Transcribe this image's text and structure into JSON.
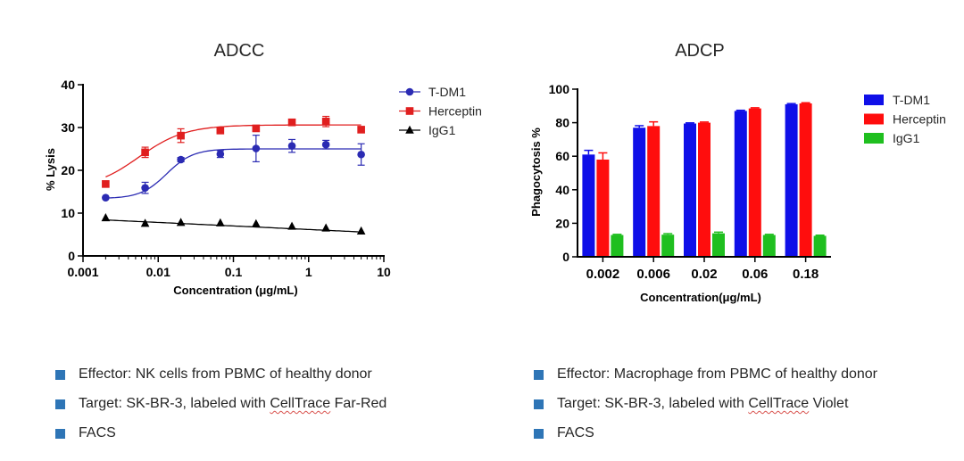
{
  "colors": {
    "bullet": "#2e75b6",
    "axis": "#000000",
    "text": "#262626"
  },
  "chart_data": [
    {
      "type": "line",
      "title": "ADCC",
      "xlabel": "Concentration (μg/mL)",
      "ylabel": "% Lysis",
      "xscale": "log",
      "xlim": [
        0.001,
        10
      ],
      "ylim": [
        0,
        40
      ],
      "xticks": [
        0.001,
        0.01,
        0.1,
        1,
        10
      ],
      "xtick_labels": [
        "0.001",
        "0.01",
        "0.1",
        "1",
        "10"
      ],
      "yticks": [
        0,
        10,
        20,
        30,
        40
      ],
      "ytick_labels": [
        "0",
        "10",
        "20",
        "30",
        "40"
      ],
      "legend_position": "top-right",
      "x": [
        0.002,
        0.0067,
        0.02,
        0.067,
        0.2,
        0.6,
        1.7,
        5
      ],
      "series": [
        {
          "name": "T-DM1",
          "color": "#2b2bb3",
          "marker": "circle",
          "values": [
            13.6,
            15.9,
            22.5,
            23.8,
            25.1,
            25.7,
            26.0,
            23.7
          ],
          "errors": [
            0,
            1.3,
            0.5,
            0.8,
            3.1,
            1.5,
            1.0,
            2.5
          ],
          "fit": [
            13.4,
            25.0,
            0.013,
            2.5
          ]
        },
        {
          "name": "Herceptin",
          "color": "#e01f1f",
          "marker": "square",
          "values": [
            16.8,
            24.2,
            28.1,
            29.3,
            29.8,
            31.2,
            31.4,
            29.5
          ],
          "errors": [
            0,
            1.2,
            1.6,
            0.5,
            0.5,
            0.6,
            1.2,
            0.5
          ],
          "fit": [
            15.5,
            30.6,
            0.0055,
            1.4
          ]
        },
        {
          "name": "IgG1",
          "color": "#000000",
          "marker": "triangle",
          "values": [
            8.9,
            7.6,
            7.8,
            7.7,
            7.5,
            6.9,
            6.5,
            5.8
          ],
          "errors": [
            0,
            0,
            0,
            0,
            0,
            0,
            0,
            0
          ],
          "linear": [
            8.4,
            5.6
          ]
        }
      ]
    },
    {
      "type": "bar",
      "title": "ADCP",
      "xlabel": "Concentration(μg/mL)",
      "ylabel": "Phagocytosis %",
      "ylim": [
        0,
        100
      ],
      "yticks": [
        0,
        20,
        40,
        60,
        80,
        100
      ],
      "ytick_labels": [
        "0",
        "20",
        "40",
        "60",
        "80",
        "100"
      ],
      "categories": [
        "0.002",
        "0.006",
        "0.02",
        "0.06",
        "0.18"
      ],
      "legend_position": "top-right",
      "series": [
        {
          "name": "T-DM1",
          "color": "#0f0fe8",
          "values": [
            61,
            77,
            79.5,
            87,
            91
          ],
          "errors": [
            2.5,
            1.2,
            0.4,
            0.4,
            0.4
          ]
        },
        {
          "name": "Herceptin",
          "color": "#ff0d0d",
          "values": [
            58,
            78,
            80,
            88.5,
            91.5
          ],
          "errors": [
            4,
            2.5,
            0.4,
            0.4,
            0.4
          ]
        },
        {
          "name": "IgG1",
          "color": "#1fbf1f",
          "values": [
            13,
            13.2,
            14,
            13,
            12.5
          ],
          "errors": [
            0.4,
            0.6,
            0.7,
            0.4,
            0.4
          ]
        }
      ]
    }
  ],
  "notes": {
    "left": [
      {
        "text": "Effector: NK cells from PBMC of healthy donor"
      },
      {
        "before": "Target: SK-BR-3, labeled with ",
        "marked": "CellTrace",
        "after": " Far-Red"
      },
      {
        "text": "FACS"
      }
    ],
    "right": [
      {
        "text": "Effector: Macrophage from PBMC of healthy donor"
      },
      {
        "before": "Target: SK-BR-3, labeled with ",
        "marked": "CellTrace",
        "after": " Violet"
      },
      {
        "text": "FACS"
      }
    ]
  }
}
